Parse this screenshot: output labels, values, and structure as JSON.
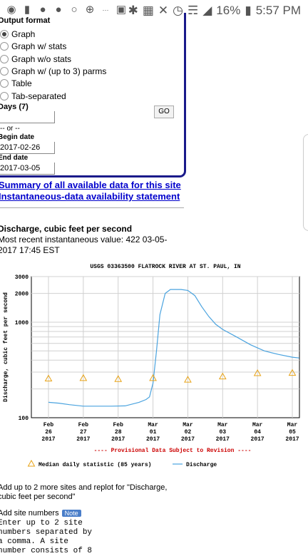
{
  "status": {
    "battery": "16%",
    "time": "5:57 PM"
  },
  "form": {
    "output_format_label": "Output format",
    "options": [
      {
        "label": "Graph",
        "checked": true
      },
      {
        "label": "Graph w/ stats",
        "checked": false
      },
      {
        "label": "Graph w/o stats",
        "checked": false
      },
      {
        "label": "Graph w/ (up to 3) parms",
        "checked": false
      },
      {
        "label": "Table",
        "checked": false
      },
      {
        "label": "Tab-separated",
        "checked": false
      }
    ],
    "days_label": "Days  (7)",
    "days_value": "",
    "go_label": "GO",
    "or_label": "-- or --",
    "begin_label": "Begin date",
    "begin_value": "2017-02-26",
    "end_label": "End date",
    "end_value": "2017-03-05"
  },
  "links": {
    "summary": "Summary of all available data for this site",
    "instantaneous": "Instantaneous-data availability statement"
  },
  "parameter": {
    "title": "Discharge, cubic feet per second",
    "recent": "Most recent instantaneous value: 422 03-05-2017   17:45 EST"
  },
  "chart_data": {
    "type": "line",
    "title": "USGS 03363500 FLATROCK RIVER AT ST. PAUL, IN",
    "ylabel": "Discharge, cubic feet per second",
    "y_scale": "log",
    "ylim": [
      100,
      3000
    ],
    "y_ticks": [
      "3000",
      "2000",
      "1000",
      "100"
    ],
    "categories": [
      "Feb\n26\n2017",
      "Feb\n27\n2017",
      "Feb\n28\n2017",
      "Mar\n01\n2017",
      "Mar\n02\n2017",
      "Mar\n03\n2017",
      "Mar\n04\n2017",
      "Mar\n05\n2017"
    ],
    "x_tick_labels": [
      [
        "Feb",
        "26",
        "2017"
      ],
      [
        "Feb",
        "27",
        "2017"
      ],
      [
        "Feb",
        "28",
        "2017"
      ],
      [
        "Mar",
        "01",
        "2017"
      ],
      [
        "Mar",
        "02",
        "2017"
      ],
      [
        "Mar",
        "03",
        "2017"
      ],
      [
        "Mar",
        "04",
        "2017"
      ],
      [
        "Mar",
        "05",
        "2017"
      ]
    ],
    "series": [
      {
        "name": "Discharge",
        "color": "#4aa3df",
        "x": [
          0,
          0.3,
          0.6,
          1.0,
          1.4,
          1.8,
          2.2,
          2.6,
          2.8,
          2.9,
          3.0,
          3.1,
          3.2,
          3.35,
          3.5,
          3.8,
          4.0,
          4.2,
          4.4,
          4.6,
          4.8,
          5.0,
          5.4,
          5.8,
          6.2,
          6.6,
          7.0,
          7.2
        ],
        "y": [
          145,
          142,
          137,
          132,
          132,
          132,
          133,
          145,
          155,
          165,
          230,
          500,
          1200,
          2000,
          2200,
          2200,
          2150,
          1900,
          1450,
          1150,
          950,
          840,
          700,
          580,
          500,
          460,
          430,
          422
        ]
      },
      {
        "name": "Median daily statistic (85 years)",
        "color": "#e8a317",
        "marker": "triangle",
        "x": [
          0,
          1,
          2,
          3,
          4,
          5,
          6,
          7
        ],
        "y": [
          255,
          258,
          252,
          258,
          248,
          268,
          290,
          292
        ]
      }
    ],
    "provisional_note": "---- Provisional Data Subject to Revision ----",
    "legend_text_median": "Median daily statistic (85 years)",
    "legend_text_discharge": "Discharge",
    "legend_placement": "bottom"
  },
  "addsites": {
    "note": "Add up to 2 more sites and replot for \"Discharge, cubic feet per second\"",
    "checkbox_label": "Add site numbers",
    "badge": "Note",
    "enter_text": "Enter up to 2 site\nnumbers separated by\na comma. A site\nnumber consists of 8"
  }
}
